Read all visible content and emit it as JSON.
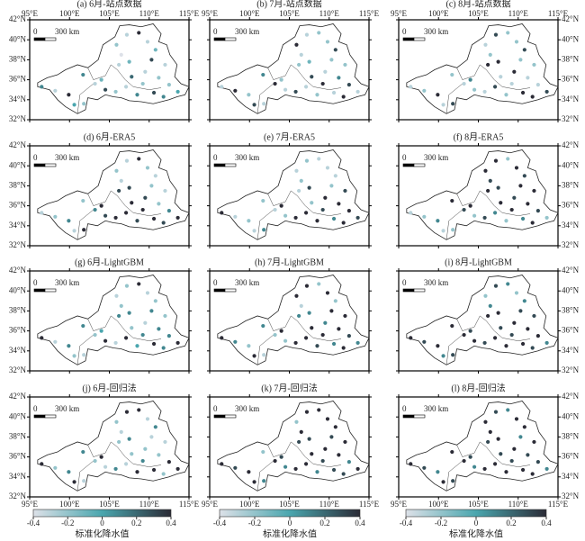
{
  "xlim": [
    95,
    115
  ],
  "ylim": [
    32,
    42
  ],
  "xticks": [
    {
      "value": 95,
      "label": "95°E"
    },
    {
      "value": 100,
      "label": "100°E"
    },
    {
      "value": 105,
      "label": "105°E"
    },
    {
      "value": 110,
      "label": "110°E"
    },
    {
      "value": 115,
      "label": "115°E"
    }
  ],
  "yticks": [
    {
      "value": 32,
      "label": "32°N"
    },
    {
      "value": 34,
      "label": "34°N"
    },
    {
      "value": 36,
      "label": "36°N"
    },
    {
      "value": 38,
      "label": "38°N"
    },
    {
      "value": 40,
      "label": "40°N"
    },
    {
      "value": 42,
      "label": "42°N"
    }
  ],
  "scale_bar": [
    "0",
    "300 km"
  ],
  "colorbar": {
    "title": "标准化降水值",
    "lim": [
      -0.4,
      0.4
    ],
    "ticks": [
      -0.4,
      -0.2,
      0,
      0.2,
      0.4
    ],
    "colors": [
      "#dde1e8",
      "#4aa6ae",
      "#2b2b36"
    ]
  },
  "stations": {
    "lon": [
      96.5,
      98.2,
      99.9,
      100.6,
      101.8,
      101.7,
      103.2,
      104.0,
      104.5,
      105.8,
      106.2,
      106.5,
      105.9,
      107.2,
      108.7,
      107.5,
      107.8,
      107.1,
      108.5,
      109.2,
      109.5,
      110.3,
      110.8,
      111.2,
      110.6,
      112.0,
      112.5,
      113.6,
      111.8,
      109.8
    ],
    "lat": [
      35.3,
      34.9,
      34.5,
      33.5,
      33.6,
      36.5,
      35.6,
      36.0,
      35.0,
      34.8,
      37.5,
      38.5,
      39.5,
      40.5,
      40.7,
      37.8,
      36.3,
      35.3,
      34.5,
      35.6,
      36.8,
      38.0,
      39.0,
      36.2,
      34.7,
      37.5,
      35.5,
      34.8,
      34.3,
      39.8
    ]
  },
  "panels": [
    {
      "title": "(a) 6月-站点数据",
      "values": [
        0.1,
        -0.3,
        0.4,
        0.0,
        -0.2,
        0.1,
        -0.3,
        -0.1,
        0.3,
        -0.2,
        -0.3,
        -0.4,
        -0.2,
        -0.3,
        0.4,
        -0.1,
        0.2,
        -0.3,
        0.1,
        -0.2,
        -0.3,
        0.3,
        -0.1,
        -0.2,
        0.3,
        -0.3,
        -0.2,
        0.0,
        0.1,
        -0.3
      ]
    },
    {
      "title": "(b) 7月-站点数据",
      "values": [
        -0.3,
        0.4,
        -0.2,
        0.3,
        -0.3,
        0.1,
        0.4,
        -0.2,
        -0.3,
        0.3,
        -0.2,
        -0.3,
        0.4,
        -0.3,
        -0.2,
        -0.1,
        0.3,
        -0.3,
        -0.2,
        0.4,
        -0.3,
        -0.2,
        0.3,
        0.1,
        -0.3,
        -0.2,
        0.3,
        -0.3,
        0.4,
        -0.2
      ]
    },
    {
      "title": "(c) 8月-站点数据",
      "values": [
        -0.3,
        -0.2,
        0.4,
        -0.3,
        0.3,
        -0.2,
        -0.3,
        0.1,
        -0.2,
        -0.3,
        0.4,
        -0.2,
        -0.3,
        0.3,
        -0.2,
        0.4,
        -0.3,
        0.3,
        -0.2,
        -0.3,
        0.4,
        -0.2,
        0.3,
        -0.3,
        0.4,
        -0.2,
        -0.3,
        0.3,
        0.4,
        -0.2
      ]
    },
    {
      "title": "(d) 6月-ERA5",
      "values": [
        -0.3,
        -0.2,
        0.1,
        -0.3,
        0.4,
        -0.2,
        0.1,
        0.4,
        0.3,
        0.4,
        0.3,
        -0.3,
        -0.2,
        -0.3,
        0.4,
        0.3,
        0.4,
        0.4,
        0.3,
        0.4,
        0.3,
        -0.2,
        -0.3,
        -0.2,
        0.4,
        -0.3,
        0.1,
        0.4,
        0.3,
        -0.2
      ]
    },
    {
      "title": "(e) 7月-ERA5",
      "values": [
        0.4,
        -0.3,
        -0.2,
        -0.3,
        0.1,
        -0.2,
        -0.3,
        0.4,
        -0.2,
        0.4,
        -0.3,
        -0.2,
        -0.3,
        -0.2,
        -0.3,
        0.3,
        -0.2,
        0.4,
        0.4,
        0.3,
        0.4,
        -0.2,
        -0.3,
        0.4,
        0.1,
        0.3,
        0.4,
        0.3,
        0.4,
        -0.3
      ]
    },
    {
      "title": "(f) 8月-ERA5",
      "values": [
        -0.3,
        -0.2,
        0.1,
        -0.3,
        -0.2,
        0.4,
        0.3,
        0.4,
        -0.2,
        0.3,
        0.4,
        0.3,
        0.4,
        0.4,
        -0.2,
        0.3,
        0.4,
        0.1,
        -0.2,
        0.4,
        0.3,
        0.4,
        0.3,
        0.4,
        0.1,
        0.4,
        0.3,
        -0.2,
        0.4,
        0.4
      ]
    },
    {
      "title": "(g) 6月-LightGBM",
      "values": [
        0.4,
        -0.3,
        0.1,
        -0.2,
        -0.3,
        0.1,
        -0.2,
        0.0,
        0.4,
        -0.3,
        0.1,
        -0.2,
        -0.3,
        -0.2,
        0.4,
        0.1,
        -0.2,
        0.4,
        0.0,
        0.1,
        -0.3,
        0.1,
        -0.2,
        0.1,
        0.4,
        -0.2,
        0.1,
        0.4,
        0.1,
        -0.3
      ]
    },
    {
      "title": "(h) 7月-LightGBM",
      "values": [
        0.4,
        0.1,
        -0.2,
        0.4,
        -0.3,
        0.1,
        -0.2,
        0.4,
        -0.2,
        0.4,
        0.1,
        -0.3,
        0.4,
        0.4,
        -0.2,
        0.1,
        0.4,
        0.4,
        0.3,
        0.4,
        0.1,
        0.4,
        -0.2,
        0.4,
        0.1,
        0.4,
        0.3,
        0.1,
        0.4,
        0.4
      ]
    },
    {
      "title": "(i) 8月-LightGBM",
      "values": [
        0.4,
        0.3,
        0.4,
        0.1,
        0.3,
        0.4,
        0.4,
        0.3,
        0.4,
        0.3,
        0.4,
        0.1,
        -0.2,
        0.3,
        0.1,
        0.4,
        0.3,
        0.4,
        0.4,
        0.3,
        0.4,
        0.3,
        0.1,
        0.4,
        0.4,
        0.3,
        0.4,
        0.1,
        0.3,
        -0.2
      ]
    },
    {
      "title": "(j) 6月-回归法",
      "values": [
        0.4,
        -0.2,
        0.1,
        0.4,
        -0.3,
        0.1,
        -0.2,
        0.4,
        -0.3,
        0.1,
        -0.2,
        -0.3,
        -0.2,
        0.4,
        0.4,
        0.1,
        -0.2,
        -0.3,
        0.4,
        0.1,
        -0.2,
        -0.3,
        0.1,
        -0.2,
        0.4,
        -0.3,
        0.4,
        0.4,
        -0.2,
        -0.3
      ]
    },
    {
      "title": "(k) 7月-回归法",
      "values": [
        0.4,
        0.3,
        0.4,
        0.4,
        0.1,
        -0.2,
        0.4,
        0.3,
        0.1,
        0.4,
        0.3,
        0.4,
        -0.2,
        0.4,
        0.4,
        0.3,
        0.4,
        0.4,
        0.1,
        0.3,
        0.4,
        0.3,
        0.4,
        0.4,
        0.3,
        0.4,
        0.1,
        0.4,
        0.3,
        0.4
      ]
    },
    {
      "title": "(l) 8月-回归法",
      "values": [
        0.4,
        0.3,
        0.1,
        0.4,
        0.3,
        0.4,
        0.4,
        0.3,
        0.1,
        0.4,
        0.3,
        0.4,
        0.4,
        0.3,
        0.1,
        0.4,
        0.3,
        0.4,
        0.4,
        0.3,
        0.4,
        0.1,
        0.4,
        0.3,
        0.4,
        0.4,
        0.3,
        0.1,
        0.4,
        0.4
      ]
    }
  ]
}
